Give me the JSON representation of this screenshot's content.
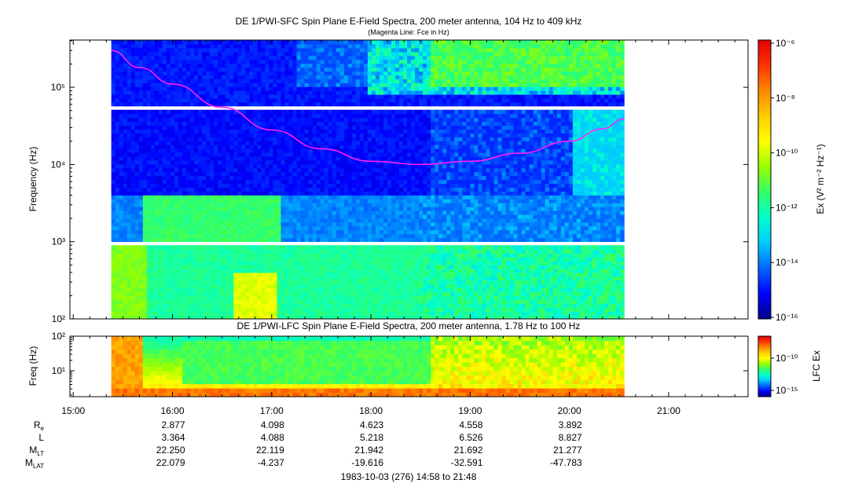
{
  "colors": {
    "fce_line": "#ff22ff",
    "background": "#ffffff",
    "colormap": [
      "#00008b",
      "#0000ff",
      "#0066ff",
      "#00ccff",
      "#00ffcc",
      "#33ff66",
      "#99ff00",
      "#ffff00",
      "#ffcc00",
      "#ff8800",
      "#ff3300",
      "#e60000"
    ]
  },
  "chart_data": [
    {
      "type": "heatmap",
      "title": "DE 1/PWI-SFC  Spin Plane E-Field Spectra, 200 meter antenna, 104 Hz to 409 kHz",
      "subtitle": "(Magenta Line: Fce in Hz)",
      "ylabel": "Frequency (Hz)",
      "yscale": "log",
      "ylim": [
        100,
        409000
      ],
      "yticks": [
        {
          "value": 100,
          "label": "10²"
        },
        {
          "value": 1000,
          "label": "10³"
        },
        {
          "value": 10000,
          "label": "10⁴"
        },
        {
          "value": 100000,
          "label": "10⁵"
        }
      ],
      "data_start": "15:23",
      "data_end": "20:33",
      "gaps_hz": [
        [
          900,
          1050
        ],
        [
          50000,
          56000
        ]
      ],
      "fce_series": {
        "name": "Fce",
        "x": [
          "15:23",
          "15:40",
          "16:00",
          "16:30",
          "17:00",
          "17:30",
          "18:00",
          "18:30",
          "19:00",
          "19:30",
          "20:00",
          "20:20",
          "20:33"
        ],
        "y": [
          300000,
          180000,
          110000,
          55000,
          28000,
          16000,
          11000,
          10000,
          11000,
          14000,
          20000,
          29000,
          39000
        ]
      },
      "colorbar": {
        "label": "Ex (V² m⁻² Hz⁻¹)",
        "scale": "log",
        "range": [
          1e-16,
          1e-06
        ],
        "ticks": [
          "10⁻⁶",
          "10⁻⁸",
          "10⁻¹⁰",
          "10⁻¹²",
          "10⁻¹⁴",
          "10⁻¹⁶"
        ]
      }
    },
    {
      "type": "heatmap",
      "title": "DE 1/PWI-LFC  Spin Plane E-Field Spectra, 200 meter antenna, 1.78 Hz to 100 Hz",
      "ylabel": "Freq (Hz)",
      "yscale": "log",
      "ylim": [
        1.78,
        100
      ],
      "yticks": [
        {
          "value": 10,
          "label": "10¹"
        },
        {
          "value": 100,
          "label": "10²"
        }
      ],
      "data_start": "15:23",
      "data_end": "20:33",
      "colorbar": {
        "label": "LFC Ex",
        "scale": "log",
        "range": [
          1e-17,
          1e-07
        ],
        "ticks": [
          "10⁻¹⁰",
          "10⁻¹⁵"
        ]
      }
    }
  ],
  "time_axis": {
    "range": [
      "14:58",
      "21:48"
    ],
    "ticks": [
      "15:00",
      "16:00",
      "17:00",
      "18:00",
      "19:00",
      "20:00",
      "21:00"
    ]
  },
  "ephemeris": {
    "labels": [
      {
        "main": "R",
        "sub": "e"
      },
      {
        "main": "L",
        "sub": ""
      },
      {
        "main": "M",
        "sub": "LT"
      },
      {
        "main": "M",
        "sub": "LAT"
      }
    ],
    "times": [
      "16:00",
      "17:00",
      "18:00",
      "19:00",
      "20:00"
    ],
    "rows": [
      [
        "2.877",
        "4.098",
        "4.623",
        "4.558",
        "3.892"
      ],
      [
        "3.364",
        "4.088",
        "5.218",
        "6.526",
        "8.827"
      ],
      [
        "22.250",
        "22.119",
        "21.942",
        "21.692",
        "21.277"
      ],
      [
        "22.079",
        "-4.237",
        "-19.616",
        "-32.591",
        "-47.783"
      ]
    ]
  },
  "footer": "1983-10-03 (276) 14:58 to 21:48"
}
